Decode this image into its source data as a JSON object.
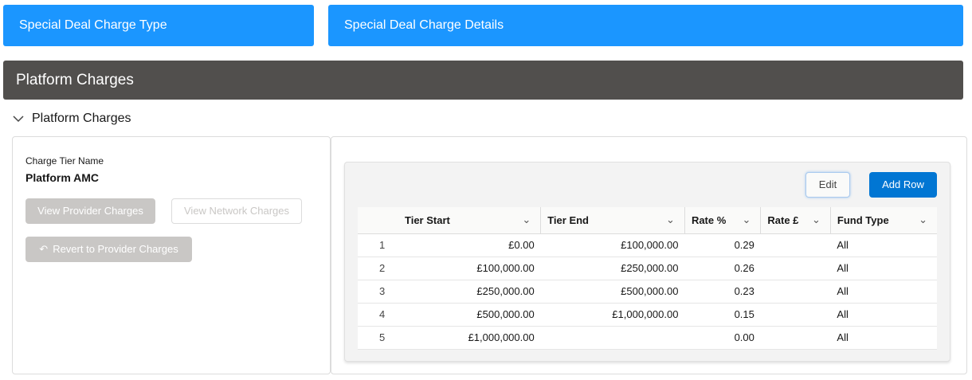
{
  "tabs": [
    "Special Deal Charge Type",
    "Special Deal Charge Details"
  ],
  "section_bar": "Platform Charges",
  "section_header": "Platform Charges",
  "left": {
    "label": "Charge Tier Name",
    "value": "Platform AMC",
    "view_provider": "View Provider Charges",
    "view_network": "View Network Charges",
    "revert": "Revert to Provider Charges"
  },
  "toolbar": {
    "edit": "Edit",
    "add_row": "Add Row"
  },
  "table": {
    "columns": [
      "Tier Start",
      "Tier End",
      "Rate %",
      "Rate £",
      "Fund Type"
    ],
    "rows": [
      [
        "1",
        "£0.00",
        "£100,000.00",
        "0.29",
        "",
        "All"
      ],
      [
        "2",
        "£100,000.00",
        "£250,000.00",
        "0.26",
        "",
        "All"
      ],
      [
        "3",
        "£250,000.00",
        "£500,000.00",
        "0.23",
        "",
        "All"
      ],
      [
        "4",
        "£500,000.00",
        "£1,000,000.00",
        "0.15",
        "",
        "All"
      ],
      [
        "5",
        "£1,000,000.00",
        "",
        "0.00",
        "",
        "All"
      ]
    ]
  },
  "colors": {
    "accent": "#1b96ff",
    "brand_button": "#0176d3",
    "bar": "#514f4d"
  }
}
